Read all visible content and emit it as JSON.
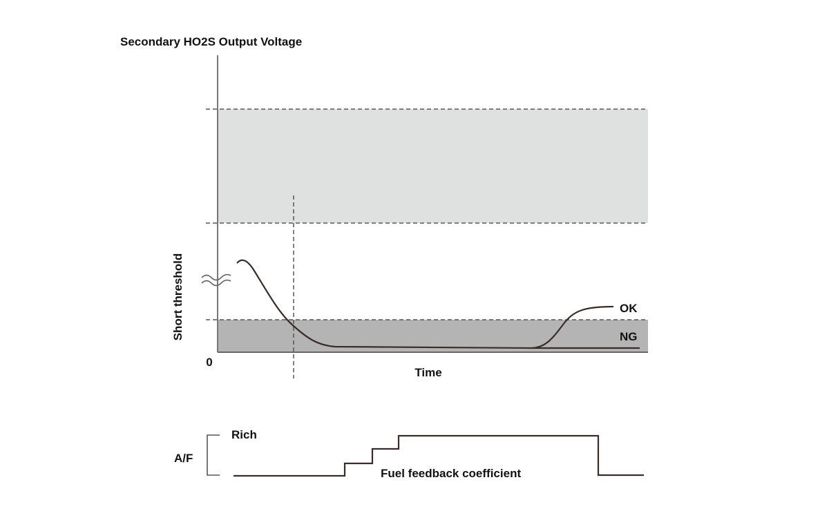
{
  "title": "Secondary HO2S Output Voltage",
  "y_axis_label": "Short threshold",
  "origin_label": "0",
  "x_axis_label": "Time",
  "curve_labels": [
    "OK",
    "NG"
  ],
  "lower_panel": {
    "rich_label": "Rich",
    "af_label": "A/F",
    "signal_label": "Fuel feedback coefficient"
  }
}
